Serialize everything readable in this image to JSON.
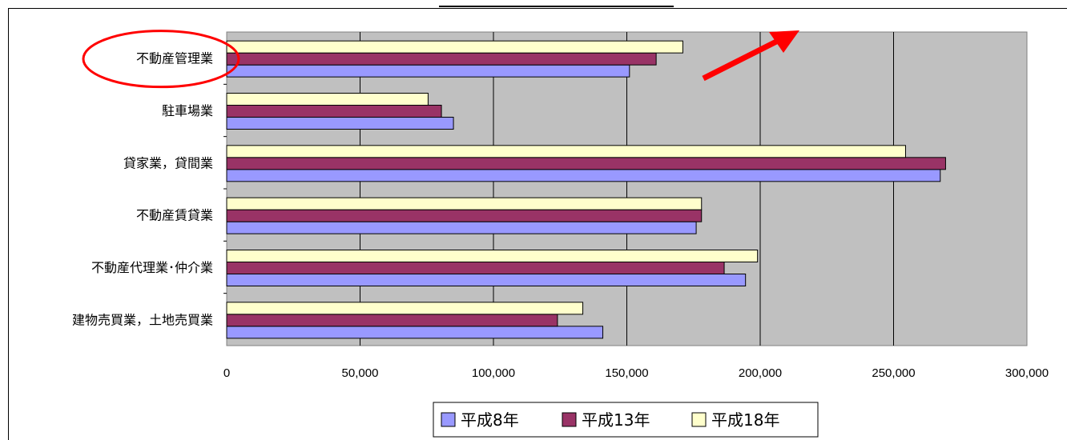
{
  "chart_data": {
    "type": "bar",
    "orientation": "horizontal",
    "categories": [
      "不動産管理業",
      "駐車場業",
      "貸家業，貸間業",
      "不動産賃貸業",
      "不動産代理業･仲介業",
      "建物売買業，土地売買業"
    ],
    "series": [
      {
        "name": "平成8年",
        "values": [
          151000,
          85000,
          267500,
          176000,
          194500,
          141000
        ]
      },
      {
        "name": "平成13年",
        "values": [
          161000,
          80500,
          269500,
          178000,
          186500,
          124000
        ]
      },
      {
        "name": "平成18年",
        "values": [
          171000,
          75500,
          254500,
          178000,
          199000,
          133500
        ]
      }
    ],
    "xlim": [
      0,
      300000
    ],
    "xticks": [
      0,
      50000,
      100000,
      150000,
      200000,
      250000,
      300000
    ],
    "xtick_labels": [
      "0",
      "50,000",
      "100,000",
      "150,000",
      "200,000",
      "250,000",
      "300,000"
    ],
    "grid": true,
    "legend_position": "bottom",
    "highlighted_category": "不動産管理業"
  },
  "colors": {
    "series": [
      "#9999ff",
      "#993366",
      "#ffffcc"
    ],
    "plot_background": "#c0c0c0",
    "highlight": "#ff0000",
    "arrow": "#ff0000"
  }
}
